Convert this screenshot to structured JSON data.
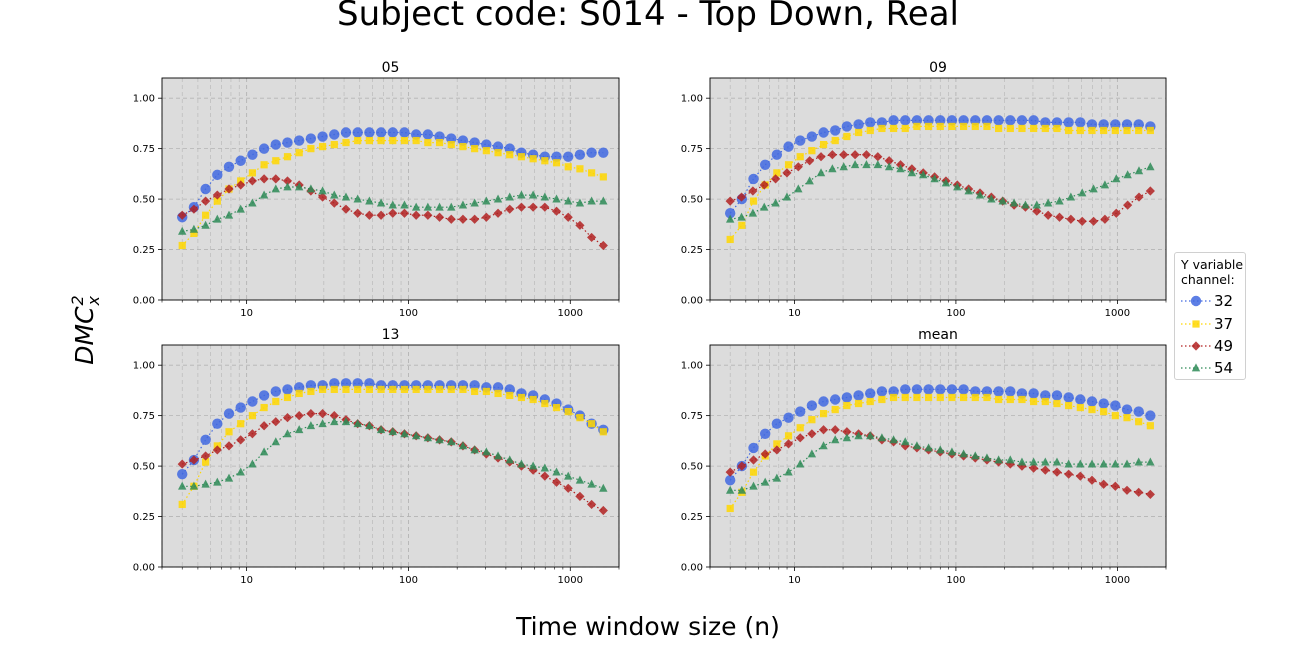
{
  "title": "Subject code: S014 - Top Down, Real",
  "xlabel": "Time window size (n)",
  "ylabel": {
    "main": "DMC",
    "sup": "2",
    "sub": "x"
  },
  "legend": {
    "title_line1": "Y variable",
    "title_line2": "channel:",
    "placement": "center-right",
    "entries": [
      {
        "label": "32",
        "color": "#4169e1",
        "marker": "circle"
      },
      {
        "label": "37",
        "color": "#ffd700",
        "marker": "square"
      },
      {
        "label": "49",
        "color": "#b22222",
        "marker": "diamond"
      },
      {
        "label": "54",
        "color": "#2e8b57",
        "marker": "triangle"
      }
    ]
  },
  "colors": {
    "panel_background": "#dcdcdc",
    "grid": "#b4b4b4"
  },
  "chart_data": [
    {
      "type": "scatter",
      "title": "05",
      "xscale": "log",
      "xlim": [
        3,
        2000
      ],
      "ylim": [
        0,
        1.1
      ],
      "xticks": [
        "10",
        "100",
        "1000"
      ],
      "yticks": [
        "0.00",
        "0.25",
        "0.50",
        "0.75",
        "1.00"
      ],
      "grid": true,
      "series": [
        {
          "name": "32",
          "values": [
            0.41,
            0.46,
            0.55,
            0.62,
            0.66,
            0.69,
            0.72,
            0.75,
            0.77,
            0.78,
            0.79,
            0.8,
            0.81,
            0.82,
            0.83,
            0.83,
            0.83,
            0.83,
            0.83,
            0.83,
            0.82,
            0.82,
            0.81,
            0.8,
            0.79,
            0.78,
            0.77,
            0.76,
            0.75,
            0.73,
            0.72,
            0.71,
            0.71,
            0.71,
            0.72,
            0.73,
            0.73
          ]
        },
        {
          "name": "37",
          "values": [
            0.27,
            0.33,
            0.42,
            0.49,
            0.55,
            0.59,
            0.63,
            0.67,
            0.69,
            0.71,
            0.73,
            0.75,
            0.76,
            0.77,
            0.78,
            0.79,
            0.79,
            0.79,
            0.79,
            0.79,
            0.79,
            0.78,
            0.78,
            0.77,
            0.76,
            0.75,
            0.74,
            0.73,
            0.72,
            0.71,
            0.7,
            0.69,
            0.68,
            0.66,
            0.65,
            0.63,
            0.61
          ]
        },
        {
          "name": "49",
          "values": [
            0.42,
            0.45,
            0.49,
            0.52,
            0.55,
            0.57,
            0.59,
            0.6,
            0.6,
            0.59,
            0.57,
            0.54,
            0.51,
            0.48,
            0.45,
            0.43,
            0.42,
            0.42,
            0.43,
            0.43,
            0.42,
            0.42,
            0.41,
            0.4,
            0.4,
            0.4,
            0.41,
            0.43,
            0.45,
            0.46,
            0.46,
            0.46,
            0.44,
            0.41,
            0.37,
            0.31,
            0.27
          ]
        },
        {
          "name": "54",
          "values": [
            0.34,
            0.35,
            0.37,
            0.4,
            0.42,
            0.45,
            0.48,
            0.52,
            0.55,
            0.56,
            0.56,
            0.55,
            0.54,
            0.52,
            0.51,
            0.5,
            0.49,
            0.48,
            0.47,
            0.47,
            0.46,
            0.46,
            0.46,
            0.46,
            0.47,
            0.48,
            0.49,
            0.5,
            0.51,
            0.52,
            0.52,
            0.51,
            0.5,
            0.49,
            0.48,
            0.49,
            0.49
          ]
        }
      ]
    },
    {
      "type": "scatter",
      "title": "09",
      "xscale": "log",
      "xlim": [
        3,
        2000
      ],
      "ylim": [
        0,
        1.1
      ],
      "xticks": [
        "10",
        "100",
        "1000"
      ],
      "yticks": [
        "0.00",
        "0.25",
        "0.50",
        "0.75",
        "1.00"
      ],
      "grid": true,
      "series": [
        {
          "name": "32",
          "values": [
            0.43,
            0.5,
            0.6,
            0.67,
            0.72,
            0.76,
            0.79,
            0.81,
            0.83,
            0.84,
            0.86,
            0.87,
            0.88,
            0.88,
            0.89,
            0.89,
            0.89,
            0.89,
            0.89,
            0.89,
            0.89,
            0.89,
            0.89,
            0.89,
            0.89,
            0.89,
            0.89,
            0.88,
            0.88,
            0.88,
            0.88,
            0.87,
            0.87,
            0.87,
            0.87,
            0.87,
            0.86
          ]
        },
        {
          "name": "37",
          "values": [
            0.3,
            0.37,
            0.49,
            0.57,
            0.63,
            0.67,
            0.71,
            0.74,
            0.77,
            0.79,
            0.81,
            0.83,
            0.84,
            0.85,
            0.85,
            0.85,
            0.86,
            0.86,
            0.86,
            0.86,
            0.86,
            0.86,
            0.86,
            0.85,
            0.85,
            0.85,
            0.85,
            0.85,
            0.85,
            0.84,
            0.84,
            0.84,
            0.84,
            0.84,
            0.84,
            0.84,
            0.84
          ]
        },
        {
          "name": "49",
          "values": [
            0.49,
            0.51,
            0.54,
            0.57,
            0.6,
            0.63,
            0.66,
            0.69,
            0.71,
            0.72,
            0.72,
            0.72,
            0.72,
            0.71,
            0.69,
            0.67,
            0.65,
            0.63,
            0.61,
            0.59,
            0.57,
            0.55,
            0.53,
            0.51,
            0.49,
            0.47,
            0.46,
            0.44,
            0.42,
            0.41,
            0.4,
            0.39,
            0.39,
            0.4,
            0.43,
            0.47,
            0.51,
            0.54
          ]
        },
        {
          "name": "54",
          "values": [
            0.4,
            0.41,
            0.43,
            0.46,
            0.48,
            0.51,
            0.55,
            0.59,
            0.63,
            0.65,
            0.66,
            0.67,
            0.67,
            0.67,
            0.66,
            0.65,
            0.63,
            0.62,
            0.6,
            0.58,
            0.56,
            0.54,
            0.52,
            0.5,
            0.49,
            0.48,
            0.47,
            0.47,
            0.48,
            0.49,
            0.51,
            0.53,
            0.55,
            0.57,
            0.6,
            0.62,
            0.64,
            0.66
          ]
        }
      ]
    },
    {
      "type": "scatter",
      "title": "13",
      "xscale": "log",
      "xlim": [
        3,
        2000
      ],
      "ylim": [
        0,
        1.1
      ],
      "xticks": [
        "10",
        "100",
        "1000"
      ],
      "yticks": [
        "0.00",
        "0.25",
        "0.50",
        "0.75",
        "1.00"
      ],
      "grid": true,
      "series": [
        {
          "name": "32",
          "values": [
            0.46,
            0.53,
            0.63,
            0.71,
            0.76,
            0.79,
            0.82,
            0.85,
            0.87,
            0.88,
            0.89,
            0.9,
            0.9,
            0.91,
            0.91,
            0.91,
            0.91,
            0.9,
            0.9,
            0.9,
            0.9,
            0.9,
            0.9,
            0.9,
            0.9,
            0.9,
            0.89,
            0.89,
            0.88,
            0.86,
            0.85,
            0.83,
            0.81,
            0.78,
            0.75,
            0.71,
            0.68
          ]
        },
        {
          "name": "37",
          "values": [
            0.31,
            0.4,
            0.52,
            0.6,
            0.67,
            0.71,
            0.75,
            0.79,
            0.82,
            0.84,
            0.86,
            0.87,
            0.88,
            0.88,
            0.88,
            0.88,
            0.88,
            0.88,
            0.88,
            0.88,
            0.88,
            0.88,
            0.88,
            0.88,
            0.88,
            0.87,
            0.87,
            0.86,
            0.85,
            0.84,
            0.83,
            0.81,
            0.79,
            0.77,
            0.74,
            0.71,
            0.67
          ]
        },
        {
          "name": "49",
          "values": [
            0.51,
            0.53,
            0.55,
            0.58,
            0.6,
            0.63,
            0.66,
            0.7,
            0.72,
            0.74,
            0.75,
            0.76,
            0.76,
            0.75,
            0.73,
            0.71,
            0.7,
            0.68,
            0.67,
            0.66,
            0.65,
            0.64,
            0.63,
            0.62,
            0.6,
            0.58,
            0.56,
            0.54,
            0.52,
            0.5,
            0.48,
            0.45,
            0.42,
            0.39,
            0.35,
            0.31,
            0.28
          ]
        },
        {
          "name": "54",
          "values": [
            0.4,
            0.4,
            0.41,
            0.42,
            0.44,
            0.47,
            0.51,
            0.57,
            0.62,
            0.66,
            0.68,
            0.7,
            0.71,
            0.72,
            0.72,
            0.71,
            0.7,
            0.68,
            0.67,
            0.66,
            0.65,
            0.64,
            0.63,
            0.62,
            0.6,
            0.58,
            0.57,
            0.55,
            0.53,
            0.51,
            0.5,
            0.49,
            0.47,
            0.45,
            0.43,
            0.41,
            0.39
          ]
        }
      ]
    },
    {
      "type": "scatter",
      "title": "mean",
      "xscale": "log",
      "xlim": [
        3,
        2000
      ],
      "ylim": [
        0,
        1.1
      ],
      "xticks": [
        "10",
        "100",
        "1000"
      ],
      "yticks": [
        "0.00",
        "0.25",
        "0.50",
        "0.75",
        "1.00"
      ],
      "grid": true,
      "series": [
        {
          "name": "32",
          "values": [
            0.43,
            0.5,
            0.59,
            0.66,
            0.71,
            0.74,
            0.77,
            0.8,
            0.82,
            0.83,
            0.84,
            0.85,
            0.86,
            0.87,
            0.87,
            0.88,
            0.88,
            0.88,
            0.88,
            0.88,
            0.88,
            0.87,
            0.87,
            0.87,
            0.87,
            0.86,
            0.86,
            0.85,
            0.85,
            0.84,
            0.83,
            0.82,
            0.81,
            0.8,
            0.78,
            0.77,
            0.75
          ]
        },
        {
          "name": "37",
          "values": [
            0.29,
            0.37,
            0.47,
            0.55,
            0.61,
            0.65,
            0.69,
            0.73,
            0.76,
            0.78,
            0.8,
            0.81,
            0.82,
            0.83,
            0.84,
            0.84,
            0.84,
            0.84,
            0.84,
            0.84,
            0.84,
            0.84,
            0.84,
            0.83,
            0.83,
            0.83,
            0.82,
            0.82,
            0.81,
            0.8,
            0.79,
            0.78,
            0.77,
            0.75,
            0.74,
            0.72,
            0.7
          ]
        },
        {
          "name": "49",
          "values": [
            0.47,
            0.5,
            0.53,
            0.56,
            0.58,
            0.61,
            0.64,
            0.66,
            0.68,
            0.68,
            0.67,
            0.66,
            0.65,
            0.63,
            0.62,
            0.6,
            0.59,
            0.58,
            0.57,
            0.56,
            0.55,
            0.54,
            0.53,
            0.52,
            0.51,
            0.5,
            0.49,
            0.48,
            0.47,
            0.46,
            0.45,
            0.43,
            0.41,
            0.4,
            0.38,
            0.37,
            0.36
          ]
        },
        {
          "name": "54",
          "values": [
            0.38,
            0.38,
            0.4,
            0.42,
            0.44,
            0.47,
            0.51,
            0.56,
            0.6,
            0.63,
            0.64,
            0.65,
            0.65,
            0.64,
            0.63,
            0.62,
            0.6,
            0.59,
            0.58,
            0.57,
            0.56,
            0.55,
            0.54,
            0.53,
            0.53,
            0.52,
            0.52,
            0.52,
            0.52,
            0.51,
            0.51,
            0.51,
            0.51,
            0.51,
            0.51,
            0.52,
            0.52
          ]
        }
      ]
    }
  ]
}
